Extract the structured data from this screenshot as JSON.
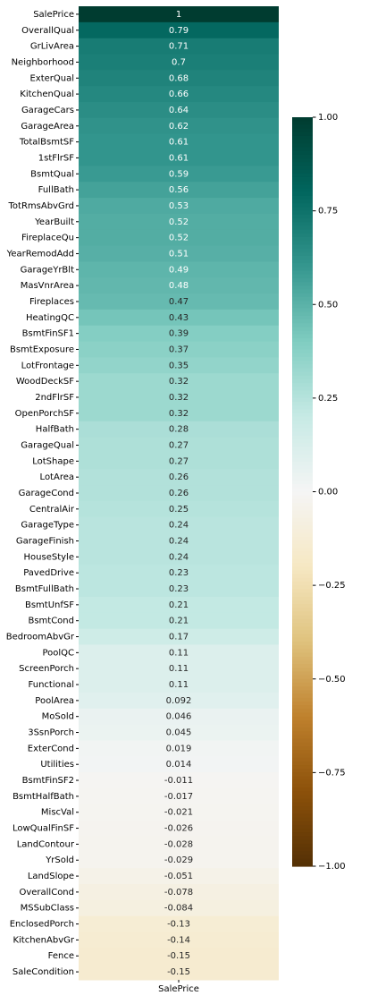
{
  "chart_data": {
    "type": "heatmap",
    "x_categories": [
      "SalePrice"
    ],
    "y_categories": [
      "SalePrice",
      "OverallQual",
      "GrLivArea",
      "Neighborhood",
      "ExterQual",
      "KitchenQual",
      "GarageCars",
      "GarageArea",
      "TotalBsmtSF",
      "1stFlrSF",
      "BsmtQual",
      "FullBath",
      "TotRmsAbvGrd",
      "YearBuilt",
      "FireplaceQu",
      "YearRemodAdd",
      "GarageYrBlt",
      "MasVnrArea",
      "Fireplaces",
      "HeatingQC",
      "BsmtFinSF1",
      "BsmtExposure",
      "LotFrontage",
      "WoodDeckSF",
      "2ndFlrSF",
      "OpenPorchSF",
      "HalfBath",
      "GarageQual",
      "LotShape",
      "LotArea",
      "GarageCond",
      "CentralAir",
      "GarageType",
      "GarageFinish",
      "HouseStyle",
      "PavedDrive",
      "BsmtFullBath",
      "BsmtUnfSF",
      "BsmtCond",
      "BedroomAbvGr",
      "PoolQC",
      "ScreenPorch",
      "Functional",
      "PoolArea",
      "MoSold",
      "3SsnPorch",
      "ExterCond",
      "Utilities",
      "BsmtFinSF2",
      "BsmtHalfBath",
      "MiscVal",
      "LowQualFinSF",
      "LandContour",
      "YrSold",
      "LandSlope",
      "OverallCond",
      "MSSubClass",
      "EnclosedPorch",
      "KitchenAbvGr",
      "Fence",
      "SaleCondition"
    ],
    "values": [
      1,
      0.79,
      0.71,
      0.7,
      0.68,
      0.66,
      0.64,
      0.62,
      0.61,
      0.61,
      0.59,
      0.56,
      0.53,
      0.52,
      0.52,
      0.51,
      0.49,
      0.48,
      0.47,
      0.43,
      0.39,
      0.37,
      0.35,
      0.32,
      0.32,
      0.32,
      0.28,
      0.27,
      0.27,
      0.26,
      0.26,
      0.25,
      0.24,
      0.24,
      0.24,
      0.23,
      0.23,
      0.21,
      0.21,
      0.17,
      0.11,
      0.11,
      0.11,
      0.092,
      0.046,
      0.045,
      0.019,
      0.014,
      -0.011,
      -0.017,
      -0.021,
      -0.026,
      -0.028,
      -0.029,
      -0.051,
      -0.078,
      -0.084,
      -0.13,
      -0.14,
      -0.15,
      -0.15
    ],
    "colormap": "BrBG",
    "clim": [
      -1,
      1
    ],
    "colorbar_ticks": [
      {
        "value": -1,
        "label": "−1.00"
      },
      {
        "value": -0.75,
        "label": "−0.75"
      },
      {
        "value": -0.5,
        "label": "−0.50"
      },
      {
        "value": -0.25,
        "label": "−0.25"
      },
      {
        "value": 0,
        "label": "0.00"
      },
      {
        "value": 0.25,
        "label": "0.25"
      },
      {
        "value": 0.5,
        "label": "0.50"
      },
      {
        "value": 0.75,
        "label": "0.75"
      },
      {
        "value": 1,
        "label": "1.00"
      }
    ]
  }
}
